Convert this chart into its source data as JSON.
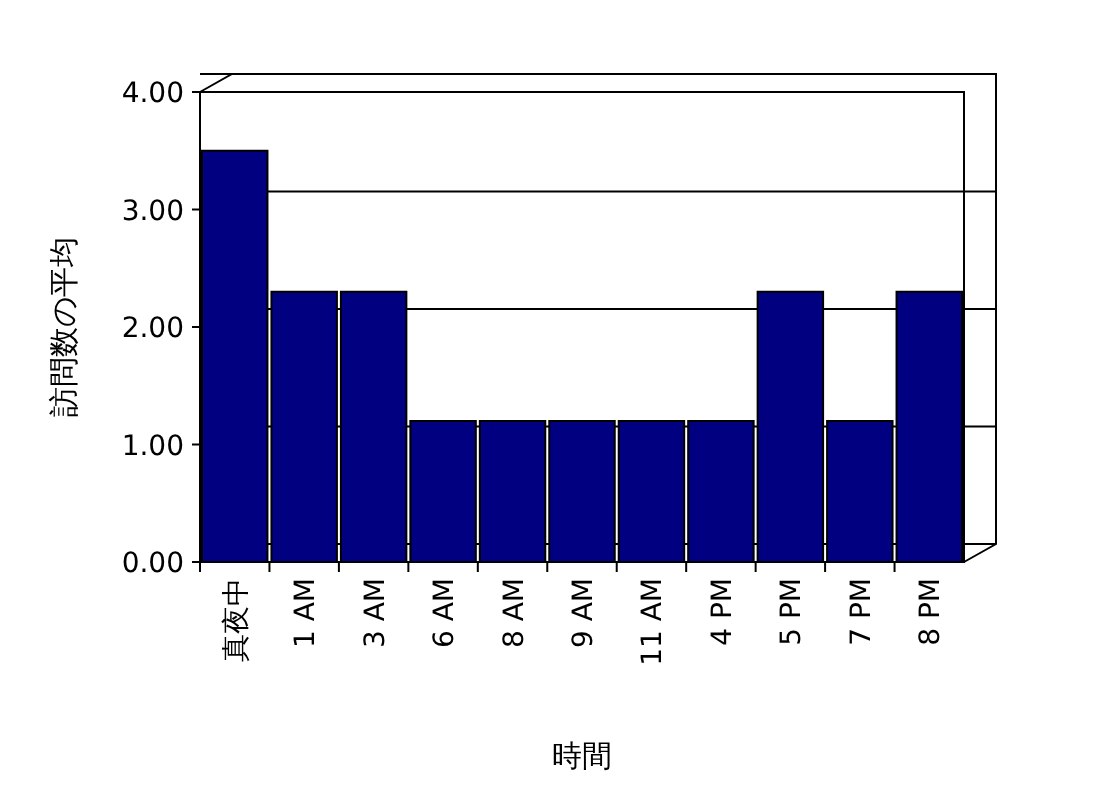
{
  "chart_data": {
    "type": "bar",
    "xlabel": "時間",
    "ylabel": "訪問数の平均",
    "categories": [
      "真夜中",
      "1 AM",
      "3 AM",
      "6 AM",
      "8 AM",
      "9 AM",
      "11 AM",
      "4 PM",
      "5 PM",
      "7 PM",
      "8 PM"
    ],
    "values": [
      3.5,
      2.3,
      2.3,
      1.2,
      1.2,
      1.2,
      1.2,
      1.2,
      2.3,
      1.2,
      2.3
    ],
    "color": "#000080",
    "ylim": [
      0,
      4
    ],
    "yticks": [
      {
        "value": 0,
        "label": "0.00"
      },
      {
        "value": 1,
        "label": "1.00"
      },
      {
        "value": 2,
        "label": "2.00"
      },
      {
        "value": 3,
        "label": "3.00"
      },
      {
        "value": 4,
        "label": "4.00"
      }
    ],
    "grid": "y"
  }
}
